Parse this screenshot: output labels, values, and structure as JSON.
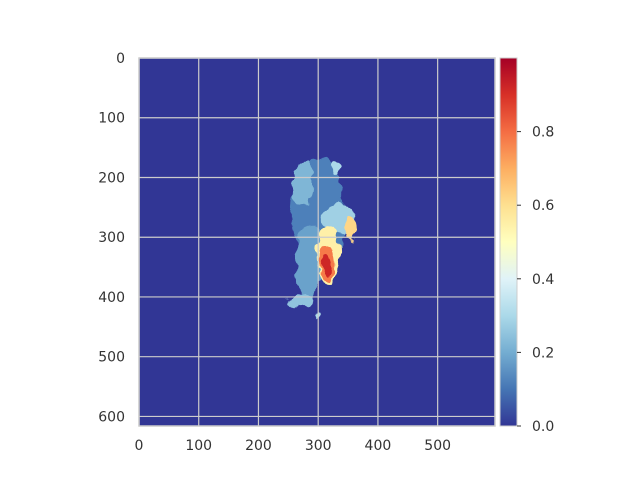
{
  "chart_data": {
    "type": "heatmap",
    "title": "",
    "xlabel": "",
    "ylabel": "",
    "xlim": [
      0,
      596
    ],
    "ylim": [
      616,
      0
    ],
    "x_ticks": [
      0,
      100,
      200,
      300,
      400,
      500
    ],
    "y_ticks": [
      0,
      100,
      200,
      300,
      400,
      500,
      600
    ],
    "grid": true,
    "colormap": "RdYlBu_r",
    "background_value": 0.0,
    "colorbar": {
      "range": [
        0.0,
        1.0
      ],
      "ticks": [
        "0.0",
        "0.2",
        "0.4",
        "0.6",
        "0.8"
      ],
      "tick_values": [
        0.0,
        0.2,
        0.4,
        0.6,
        0.8
      ]
    },
    "regions": [
      {
        "x": 300,
        "y": 260,
        "rx": 45,
        "ry": 95,
        "value": 0.12
      },
      {
        "x": 275,
        "y": 210,
        "rx": 18,
        "ry": 35,
        "value": 0.22
      },
      {
        "x": 335,
        "y": 270,
        "rx": 30,
        "ry": 25,
        "value": 0.28
      },
      {
        "x": 355,
        "y": 285,
        "rx": 12,
        "ry": 18,
        "value": 0.62
      },
      {
        "x": 285,
        "y": 340,
        "rx": 25,
        "ry": 60,
        "value": 0.18
      },
      {
        "x": 330,
        "y": 185,
        "rx": 8,
        "ry": 10,
        "value": 0.3
      },
      {
        "x": 315,
        "y": 330,
        "rx": 20,
        "ry": 45,
        "value": 0.55
      },
      {
        "x": 313,
        "y": 340,
        "rx": 14,
        "ry": 30,
        "value": 0.78
      },
      {
        "x": 312,
        "y": 345,
        "rx": 9,
        "ry": 16,
        "value": 0.92
      },
      {
        "x": 270,
        "y": 405,
        "rx": 22,
        "ry": 12,
        "value": 0.25
      },
      {
        "x": 300,
        "y": 430,
        "rx": 4,
        "ry": 4,
        "value": 0.3
      }
    ]
  }
}
